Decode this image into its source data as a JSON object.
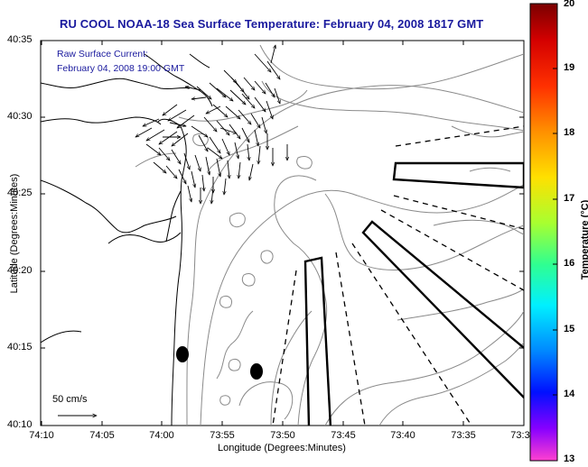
{
  "title": "RU COOL  NOAA-18  Sea Surface Temperature:  February 04, 2008 1817 GMT",
  "annotation": {
    "line1": "Raw Surface Current:",
    "line2": "February 04, 2008 19:00 GMT"
  },
  "x_axis": {
    "label": "Longitude (Degrees:Minutes)",
    "ticks": [
      "74:10",
      "74:05",
      "74:00",
      "73:55",
      "73:50",
      "73:45",
      "73:40",
      "73:35",
      "73:3"
    ]
  },
  "y_axis": {
    "label": "Latitude (Degrees:Minutes)",
    "ticks": [
      "40:35",
      "40:30",
      "40:25",
      "40:20",
      "40:15",
      "40:10"
    ]
  },
  "colorbar": {
    "label": "Temperature (°C)",
    "ticks": [
      "20",
      "19",
      "18",
      "17",
      "16",
      "15",
      "14",
      "13"
    ],
    "min": 13,
    "max": 20
  },
  "scale_label": "50 cm/s",
  "colors": {
    "title": "#1a1a9e",
    "land_line": "#000000",
    "contour": "#8a8a8a"
  }
}
